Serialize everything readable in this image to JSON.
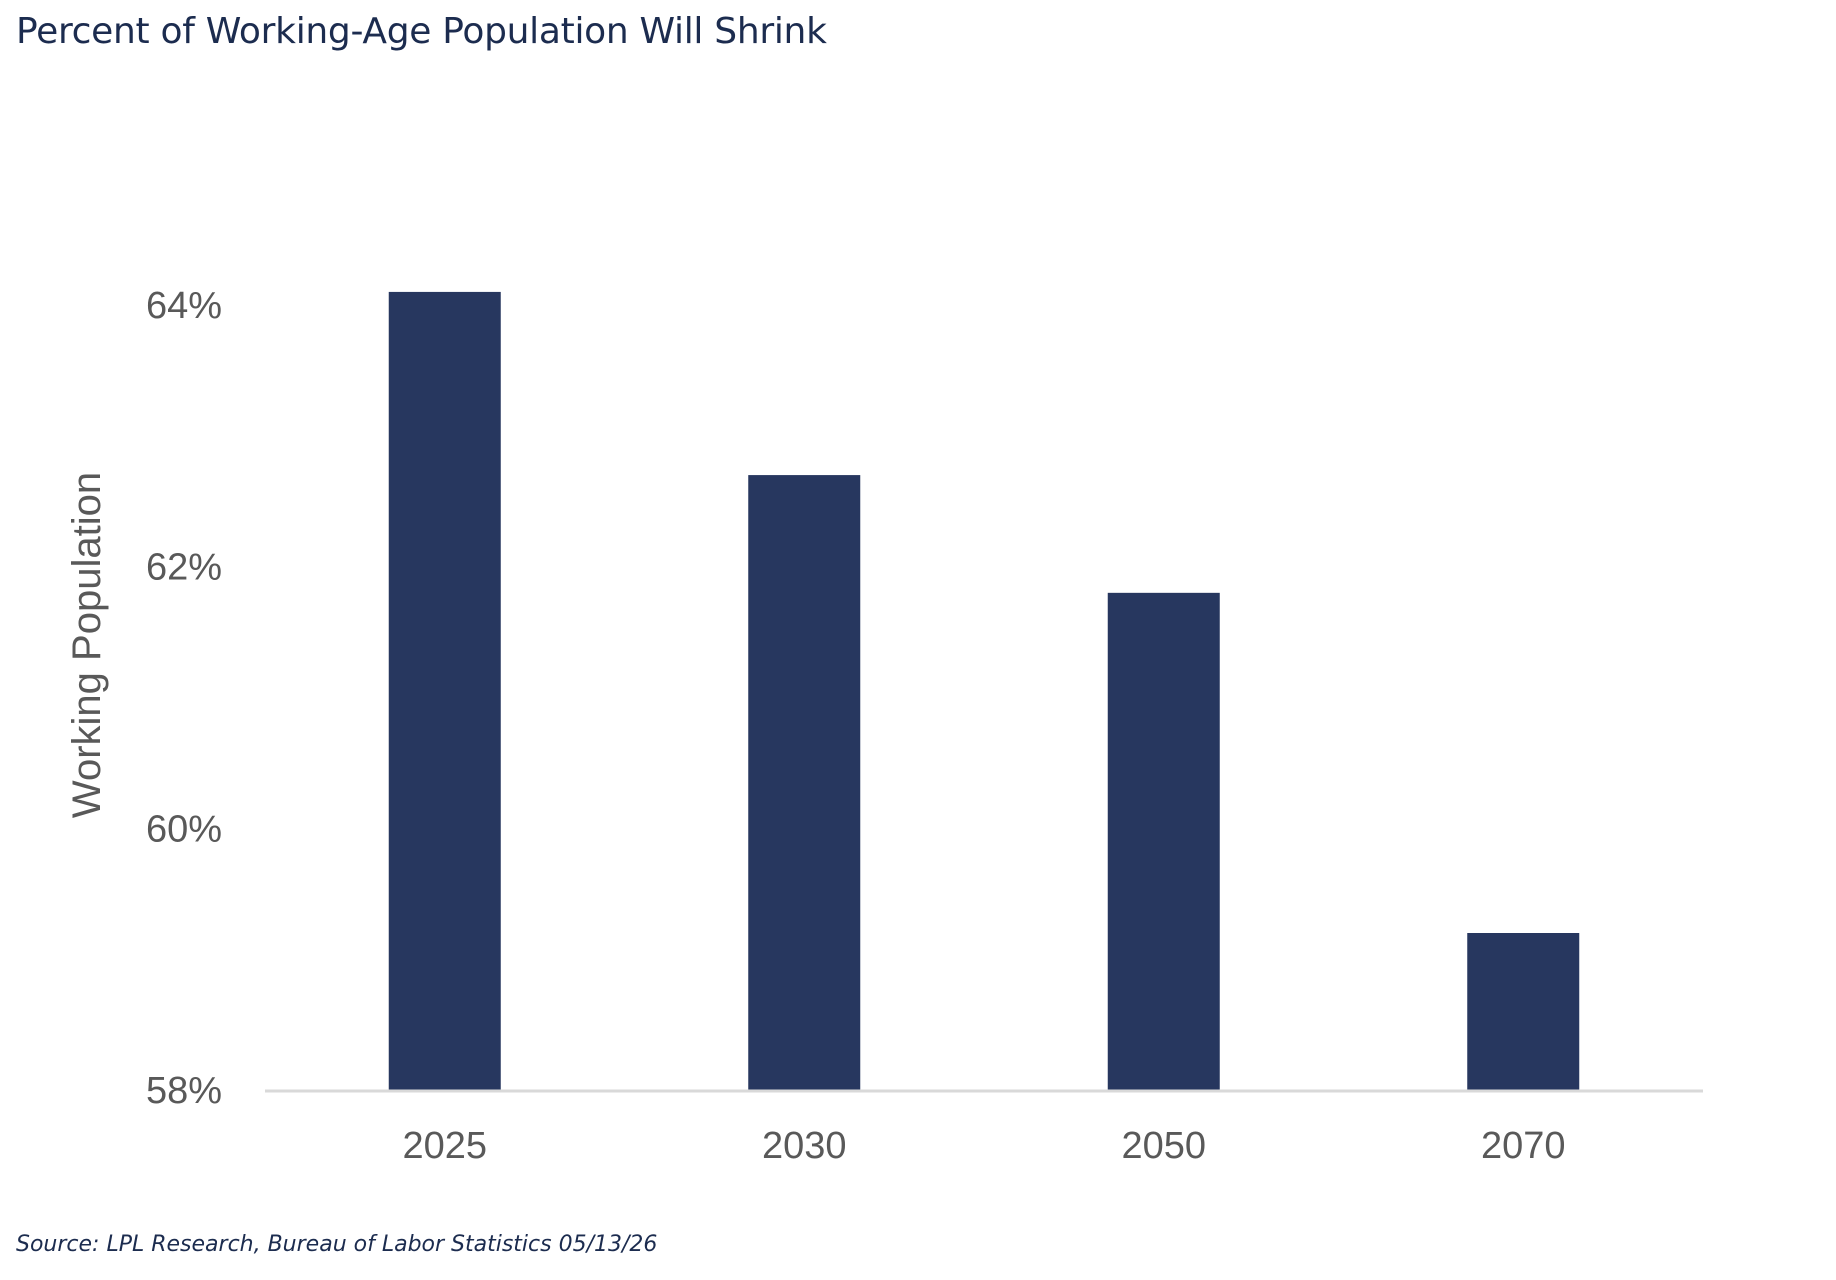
{
  "page": {
    "title": "Percent of Working-Age Population Will Shrink",
    "source": "Source: LPL Research, Bureau of Labor Statistics 05/13/26"
  },
  "colors": {
    "bar": "#27375f",
    "axis_line": "#d9d9d9",
    "tick_label": "#595959",
    "title": "#1c2c4f"
  },
  "chart_data": {
    "type": "bar",
    "title": "Percent of Working-Age Population Will Shrink",
    "xlabel": "",
    "ylabel": "Working Population",
    "categories": [
      "2025",
      "2030",
      "2050",
      "2070"
    ],
    "values": [
      64.1,
      62.7,
      61.8,
      59.2
    ],
    "ylim": [
      58,
      64
    ],
    "yticks": [
      58,
      60,
      62,
      64
    ],
    "ytick_labels": [
      "58%",
      "60%",
      "62%",
      "64%"
    ],
    "value_unit": "%",
    "grid": false,
    "legend": "none"
  }
}
